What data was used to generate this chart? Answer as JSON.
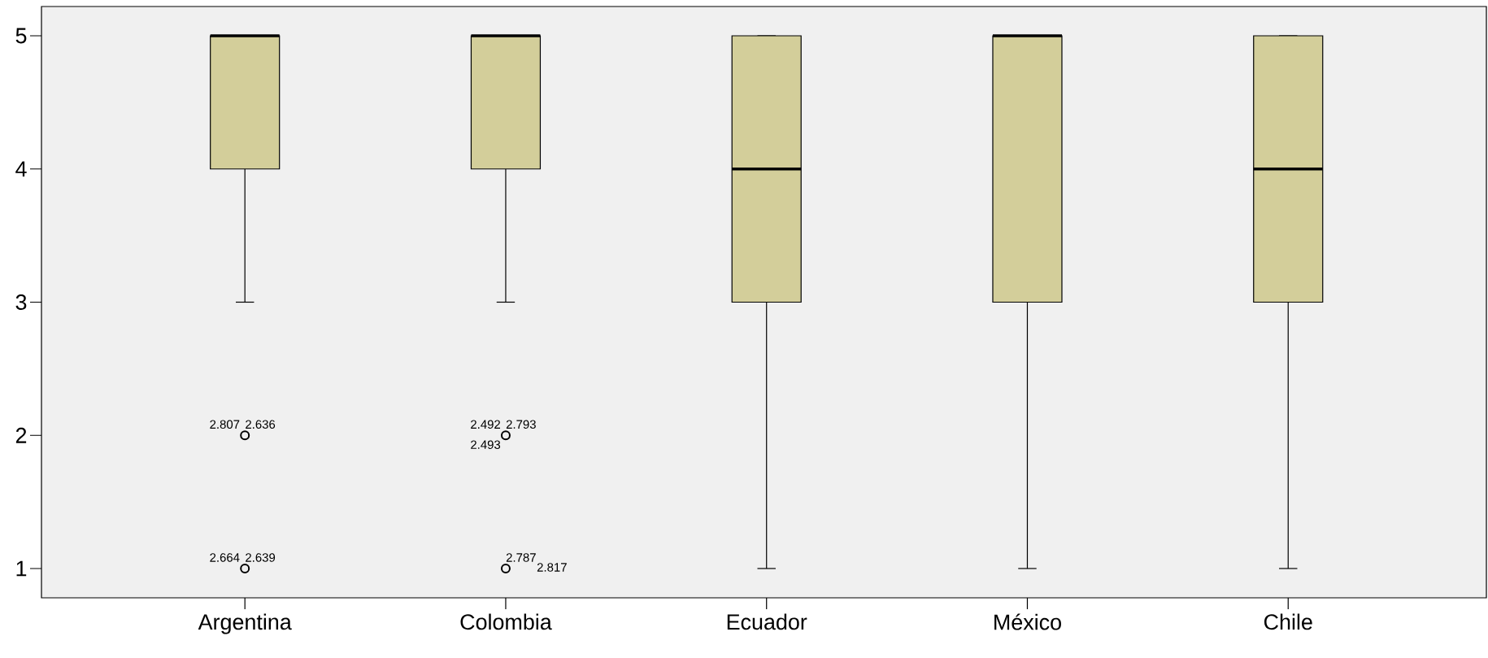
{
  "chart_data": {
    "type": "box",
    "categories": [
      "Argentina",
      "Colombia",
      "Ecuador",
      "México",
      "Chile"
    ],
    "boxes": [
      {
        "low": 3,
        "q1": 4,
        "median": 5,
        "q3": 5,
        "high": 5,
        "outliers": [
          2,
          1
        ]
      },
      {
        "low": 3,
        "q1": 4,
        "median": 5,
        "q3": 5,
        "high": 5,
        "outliers": [
          2,
          1
        ]
      },
      {
        "low": 1,
        "q1": 3,
        "median": 4,
        "q3": 5,
        "high": 5
      },
      {
        "low": 1,
        "q1": 3,
        "median": 5,
        "q3": 5,
        "high": 5
      },
      {
        "low": 1,
        "q1": 3,
        "median": 4,
        "q3": 5,
        "high": 5
      }
    ],
    "color": "#d3ce9a",
    "ylim": [
      0.78,
      5.22
    ],
    "yticks": [
      1,
      2,
      3,
      4,
      5
    ],
    "grid": false,
    "marker": "circle",
    "annotations": [
      "2.807",
      "2.636",
      "2.664",
      "2.639",
      "2.492",
      "2.793",
      "2.493",
      "2.787",
      "2.817"
    ]
  }
}
